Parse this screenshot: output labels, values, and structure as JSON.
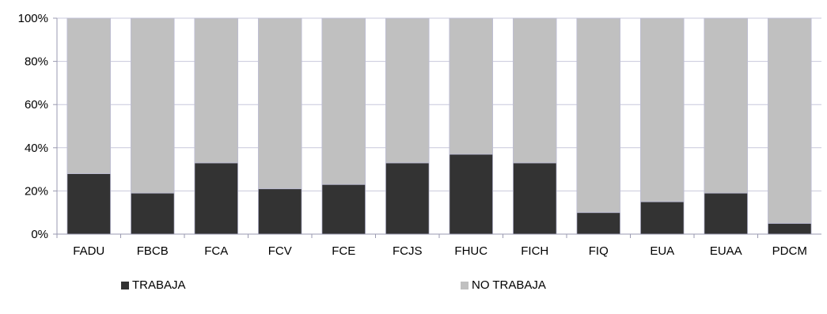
{
  "chart_data": {
    "type": "bar",
    "stacked": true,
    "percent_stacked": true,
    "categories": [
      "FADU",
      "FBCB",
      "FCA",
      "FCV",
      "FCE",
      "FCJS",
      "FHUC",
      "FICH",
      "FIQ",
      "EUA",
      "EUAA",
      "PDCM"
    ],
    "series": [
      {
        "name": "TRABAJA",
        "color": "#333333",
        "values": [
          28,
          19,
          33,
          21,
          23,
          33,
          37,
          33,
          10,
          15,
          19,
          5
        ]
      },
      {
        "name": "NO TRABAJA",
        "color": "#c0c0c0",
        "values": [
          72,
          81,
          67,
          79,
          77,
          67,
          63,
          67,
          90,
          85,
          81,
          95
        ]
      }
    ],
    "y_ticks": [
      "0%",
      "20%",
      "40%",
      "60%",
      "80%",
      "100%"
    ],
    "ylim": [
      0,
      100
    ],
    "grid": true,
    "legend_position": "bottom"
  }
}
